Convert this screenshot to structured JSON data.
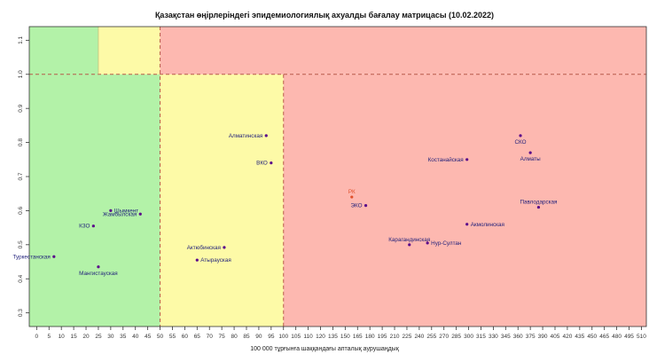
{
  "chart_data": {
    "type": "scatter",
    "title": "Қазақстан өңірлеріндегі эпидемиологиялық ахуалды бағалау матрицасы  (10.02.2022)",
    "xlabel": "100 000 тұрғынға шаққандағы апталық аурушаңдық",
    "ylabel": "",
    "xlim": [
      -5,
      520
    ],
    "ylim": [
      0.26,
      1.14
    ],
    "x_ticks": [
      0,
      5,
      10,
      15,
      20,
      25,
      30,
      35,
      40,
      45,
      50,
      55,
      60,
      65,
      70,
      75,
      80,
      85,
      90,
      95,
      100,
      105,
      110,
      120,
      135,
      150,
      165,
      180,
      195,
      210,
      225,
      240,
      255,
      270,
      285,
      300,
      315,
      330,
      345,
      360,
      375,
      390,
      405,
      420,
      435,
      450,
      465,
      480,
      495,
      510
    ],
    "y_ticks": [
      "0.3",
      "0.4",
      "0.5",
      "0.6",
      "0.7",
      "0.8",
      "0.9",
      "1.0",
      "1.1"
    ],
    "zones": [
      {
        "name": "green",
        "color": "#b3f2a8",
        "x0": -5,
        "x1": 50,
        "y0": 0.26,
        "y1": 1.14
      },
      {
        "name": "yellow",
        "color": "#fdfaa7",
        "x0": 50,
        "x1": 100,
        "y0": 0.26,
        "y1": 1.0
      },
      {
        "name": "yellow-top",
        "color": "#fdfaa7",
        "x0": 25,
        "x1": 50,
        "y0": 1.0,
        "y1": 1.14
      },
      {
        "name": "red",
        "color": "#fdb8b0",
        "x0": 100,
        "x1": 520,
        "y0": 0.26,
        "y1": 1.0
      },
      {
        "name": "red-top",
        "color": "#fdb8b0",
        "x0": 50,
        "x1": 520,
        "y0": 1.0,
        "y1": 1.14
      }
    ],
    "dashed_lines": {
      "vertical": [
        50,
        100
      ],
      "horizontal": [
        1.0
      ],
      "color": "#b85a4a"
    },
    "points": [
      {
        "label": "Алматинская",
        "x": 93,
        "y": 0.82,
        "color": "#1f1f7a",
        "anchor": "left"
      },
      {
        "label": "ВКО",
        "x": 95,
        "y": 0.74,
        "color": "#1f1f7a",
        "anchor": "left"
      },
      {
        "label": "Шымкент",
        "x": 30,
        "y": 0.6,
        "color": "#1f1f7a",
        "anchor": "right"
      },
      {
        "label": "Жамбылская",
        "x": 42,
        "y": 0.59,
        "color": "#1f1f7a",
        "anchor": "left"
      },
      {
        "label": "КЗО",
        "x": 23,
        "y": 0.555,
        "color": "#1f1f7a",
        "anchor": "left"
      },
      {
        "label": "Туркестанская",
        "x": 7,
        "y": 0.465,
        "color": "#1f1f7a",
        "anchor": "left"
      },
      {
        "label": "Мангистауская",
        "x": 25,
        "y": 0.435,
        "color": "#1f1f7a",
        "anchor": "below"
      },
      {
        "label": "Актюбинская",
        "x": 76,
        "y": 0.492,
        "color": "#1f1f7a",
        "anchor": "left"
      },
      {
        "label": "Атырауская",
        "x": 65,
        "y": 0.455,
        "color": "#1f1f7a",
        "anchor": "right"
      },
      {
        "label": "РК",
        "x": 158,
        "y": 0.64,
        "color": "#e0502a",
        "anchor": "above"
      },
      {
        "label": "ЭКО",
        "x": 175,
        "y": 0.615,
        "color": "#1f1f7a",
        "anchor": "left"
      },
      {
        "label": "Карагандинская",
        "x": 228,
        "y": 0.5,
        "color": "#1f1f7a",
        "anchor": "above"
      },
      {
        "label": "Нур-Султан",
        "x": 250,
        "y": 0.505,
        "color": "#1f1f7a",
        "anchor": "right"
      },
      {
        "label": "Акмолинская",
        "x": 298,
        "y": 0.56,
        "color": "#1f1f7a",
        "anchor": "right"
      },
      {
        "label": "Костанайская",
        "x": 298,
        "y": 0.75,
        "color": "#1f1f7a",
        "anchor": "left"
      },
      {
        "label": "СКО",
        "x": 363,
        "y": 0.82,
        "color": "#1f1f7a",
        "anchor": "below"
      },
      {
        "label": "Алматы",
        "x": 375,
        "y": 0.77,
        "color": "#1f1f7a",
        "anchor": "below"
      },
      {
        "label": "Павлодарская",
        "x": 385,
        "y": 0.61,
        "color": "#1f1f7a",
        "anchor": "above"
      }
    ]
  }
}
